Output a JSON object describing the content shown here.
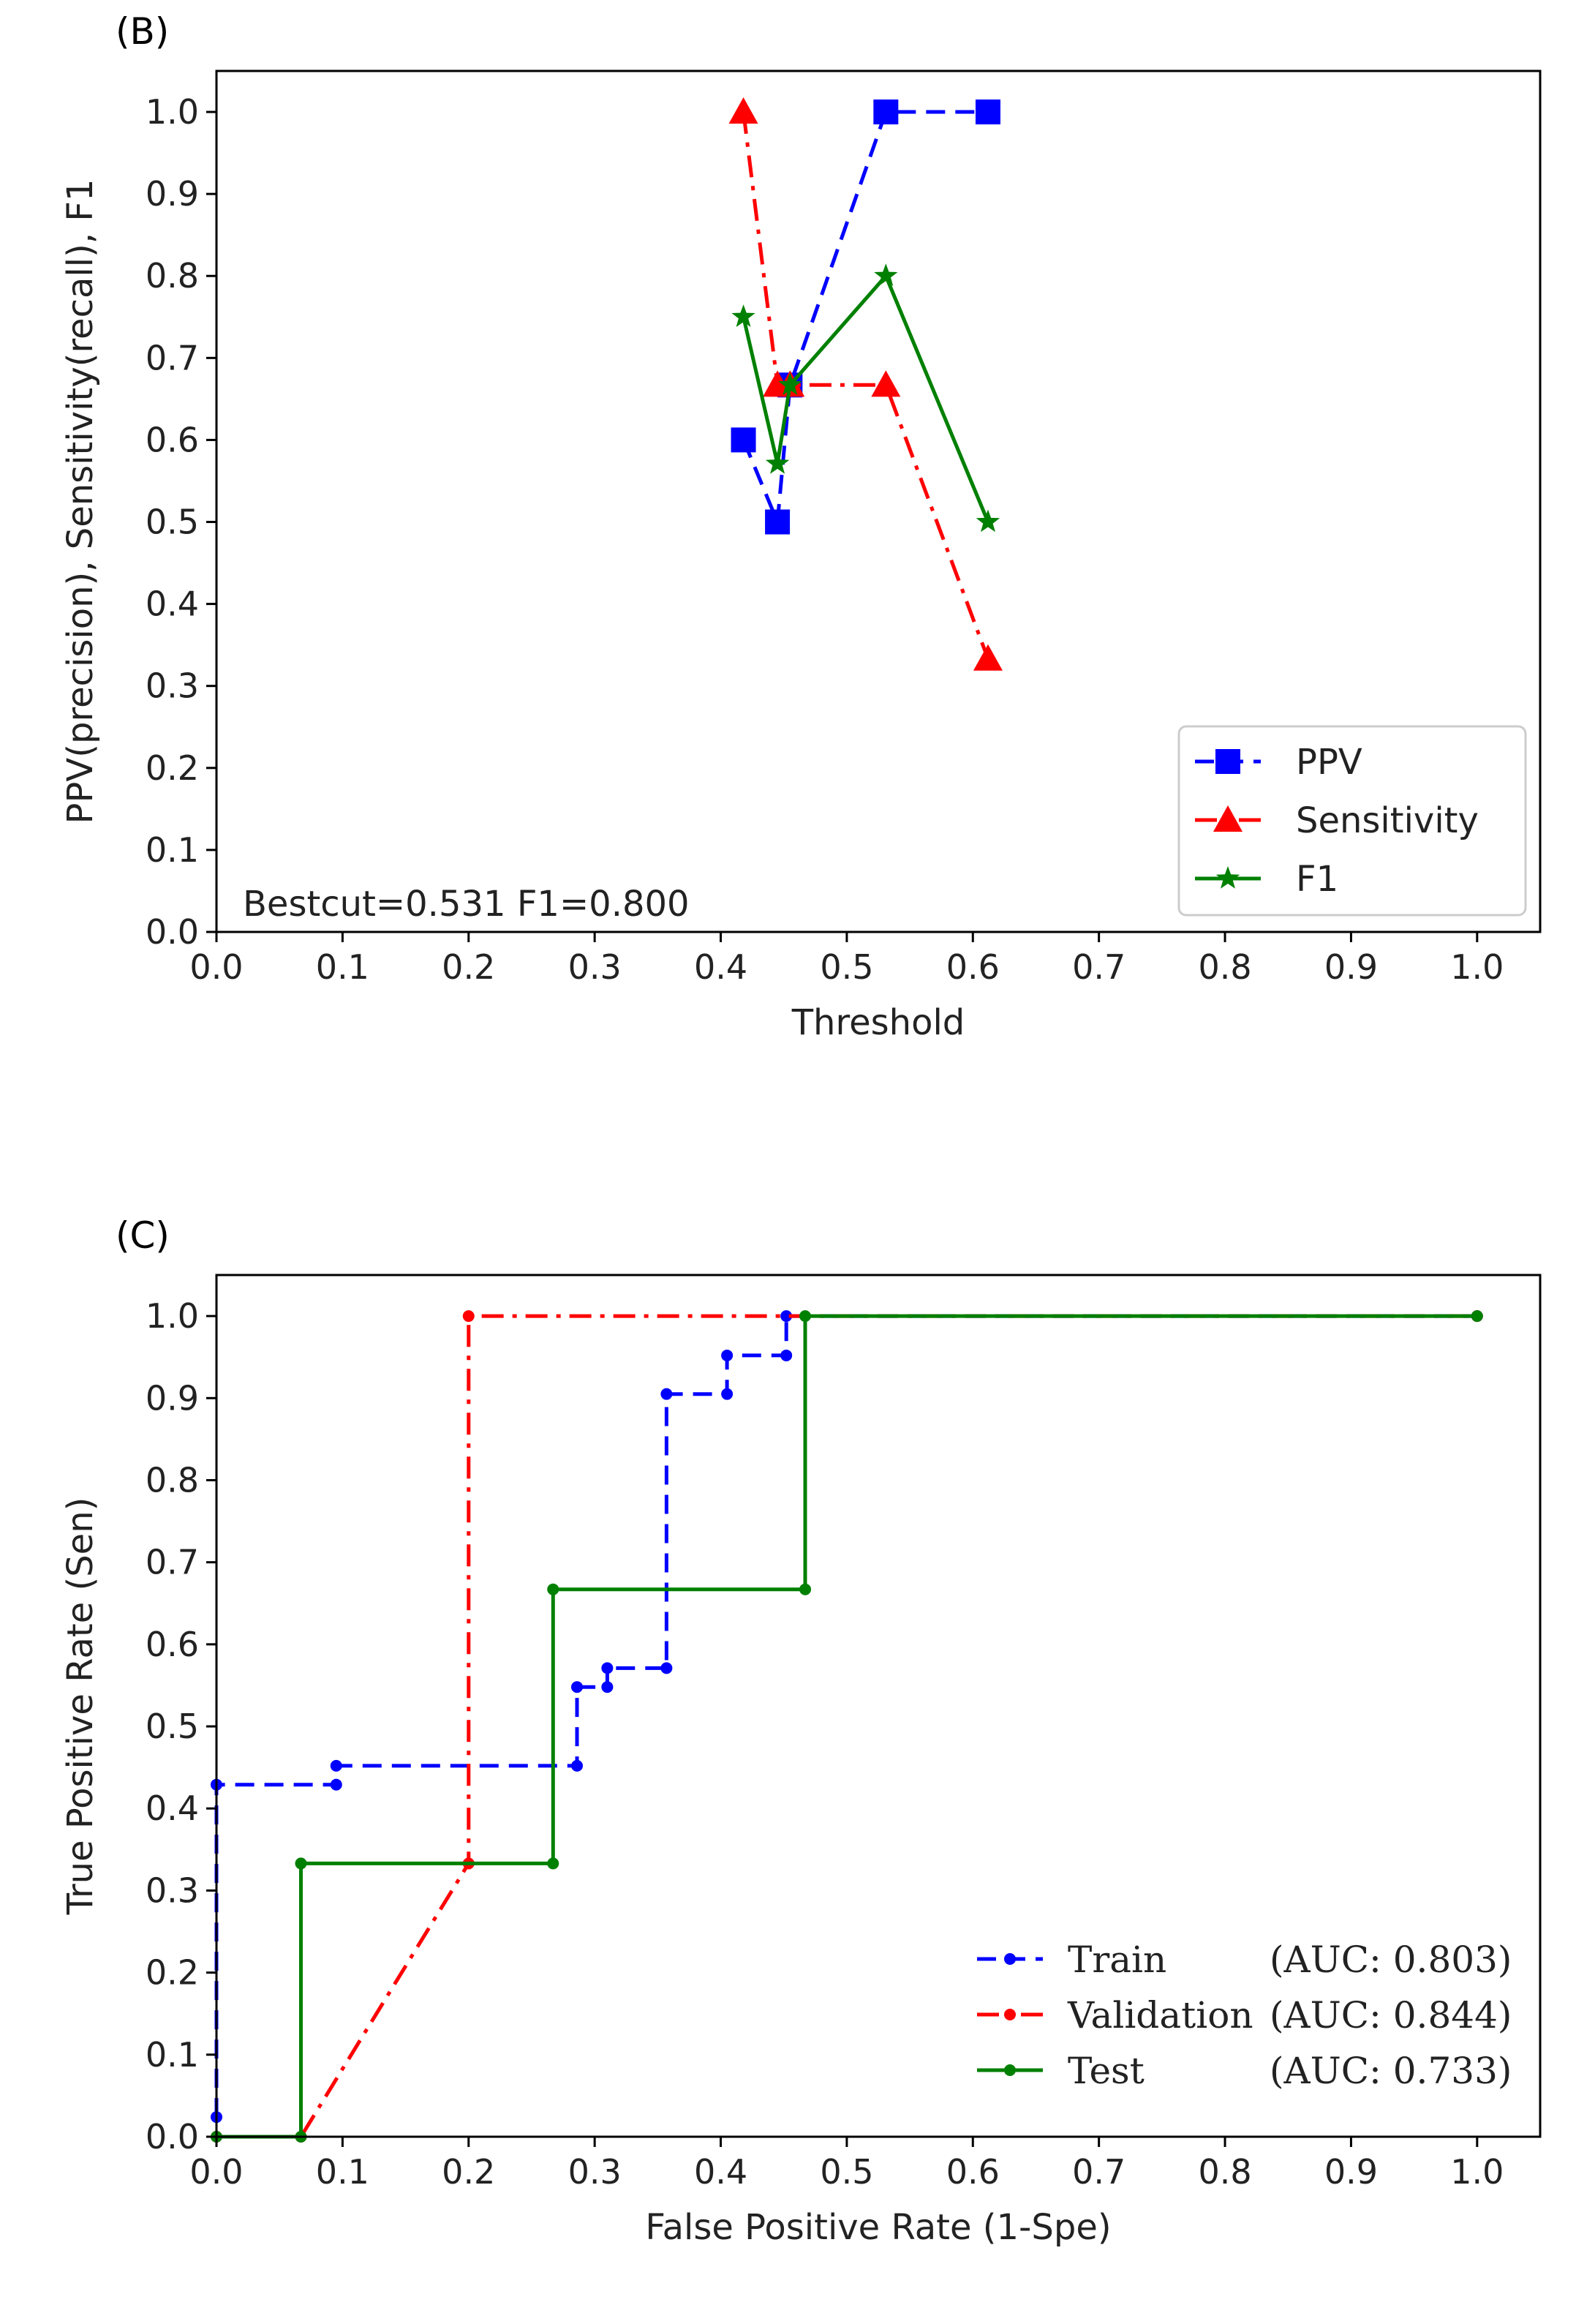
{
  "figure": {
    "background": "#ffffff",
    "panel_labels": [
      "(B)",
      "(C)"
    ]
  },
  "chart_data": [
    {
      "panel": "(B)",
      "type": "line",
      "title": "",
      "xlabel": "Threshold",
      "ylabel": "PPV(precision), Sensitivity(recall), F1",
      "xlim": [
        0.0,
        1.05
      ],
      "ylim": [
        0.0,
        1.05
      ],
      "xticks": [
        0.0,
        0.1,
        0.2,
        0.3,
        0.4,
        0.5,
        0.6,
        0.7,
        0.8,
        0.9,
        1.0
      ],
      "yticks": [
        0.0,
        0.1,
        0.2,
        0.3,
        0.4,
        0.5,
        0.6,
        0.7,
        0.8,
        0.9,
        1.0
      ],
      "tick_labels_x": [
        "0.0",
        "0.1",
        "0.2",
        "0.3",
        "0.4",
        "0.5",
        "0.6",
        "0.7",
        "0.8",
        "0.9",
        "1.0"
      ],
      "tick_labels_y": [
        "0.0",
        "0.1",
        "0.2",
        "0.3",
        "0.4",
        "0.5",
        "0.6",
        "0.7",
        "0.8",
        "0.9",
        "1.0"
      ],
      "grid": false,
      "legend_position": "lower-right",
      "annotation": "Bestcut=0.531 F1=0.800",
      "series": [
        {
          "name": "PPV",
          "color": "#0000ff",
          "style": "dashed",
          "marker": "square",
          "x": [
            0.418,
            0.445,
            0.455,
            0.531,
            0.612
          ],
          "y": [
            0.6,
            0.5,
            0.667,
            1.0,
            1.0
          ]
        },
        {
          "name": "Sensitivity",
          "color": "#ff0000",
          "style": "dashdot",
          "marker": "triangle",
          "x": [
            0.418,
            0.445,
            0.455,
            0.531,
            0.612
          ],
          "y": [
            1.0,
            0.667,
            0.667,
            0.667,
            0.333
          ]
        },
        {
          "name": "F1",
          "color": "#008000",
          "style": "solid",
          "marker": "star",
          "x": [
            0.418,
            0.445,
            0.455,
            0.531,
            0.612
          ],
          "y": [
            0.75,
            0.571,
            0.667,
            0.8,
            0.5
          ]
        }
      ]
    },
    {
      "panel": "(C)",
      "type": "line",
      "title": "",
      "xlabel": "False Positive Rate (1-Spe)",
      "ylabel": "True Positive Rate (Sen)",
      "xlim": [
        0.0,
        1.05
      ],
      "ylim": [
        0.0,
        1.05
      ],
      "xticks": [
        0.0,
        0.1,
        0.2,
        0.3,
        0.4,
        0.5,
        0.6,
        0.7,
        0.8,
        0.9,
        1.0
      ],
      "yticks": [
        0.0,
        0.1,
        0.2,
        0.3,
        0.4,
        0.5,
        0.6,
        0.7,
        0.8,
        0.9,
        1.0
      ],
      "tick_labels_x": [
        "0.0",
        "0.1",
        "0.2",
        "0.3",
        "0.4",
        "0.5",
        "0.6",
        "0.7",
        "0.8",
        "0.9",
        "1.0"
      ],
      "tick_labels_y": [
        "0.0",
        "0.1",
        "0.2",
        "0.3",
        "0.4",
        "0.5",
        "0.6",
        "0.7",
        "0.8",
        "0.9",
        "1.0"
      ],
      "grid": false,
      "legend_position": "lower-right",
      "series": [
        {
          "name": "Train",
          "auc_label": "(AUC: 0.803)",
          "color": "#0000ff",
          "style": "dashed",
          "marker": "dot",
          "x": [
            0.0,
            0.0,
            0.095,
            0.095,
            0.286,
            0.286,
            0.31,
            0.31,
            0.357,
            0.357,
            0.405,
            0.405,
            0.452,
            0.452,
            1.0
          ],
          "y": [
            0.024,
            0.429,
            0.429,
            0.452,
            0.452,
            0.548,
            0.548,
            0.571,
            0.571,
            0.905,
            0.905,
            0.952,
            0.952,
            1.0,
            1.0
          ]
        },
        {
          "name": "Validation",
          "auc_label": "(AUC: 0.844)",
          "color": "#ff0000",
          "style": "dashdot",
          "marker": "dot",
          "x": [
            0.0,
            0.067,
            0.2,
            0.2,
            1.0
          ],
          "y": [
            0.0,
            0.0,
            0.333,
            1.0,
            1.0
          ]
        },
        {
          "name": "Test",
          "auc_label": "(AUC: 0.733)",
          "color": "#008000",
          "style": "solid",
          "marker": "dot",
          "x": [
            0.0,
            0.067,
            0.067,
            0.267,
            0.267,
            0.467,
            0.467,
            1.0
          ],
          "y": [
            0.0,
            0.0,
            0.333,
            0.333,
            0.667,
            0.667,
            1.0,
            1.0
          ]
        }
      ]
    }
  ]
}
